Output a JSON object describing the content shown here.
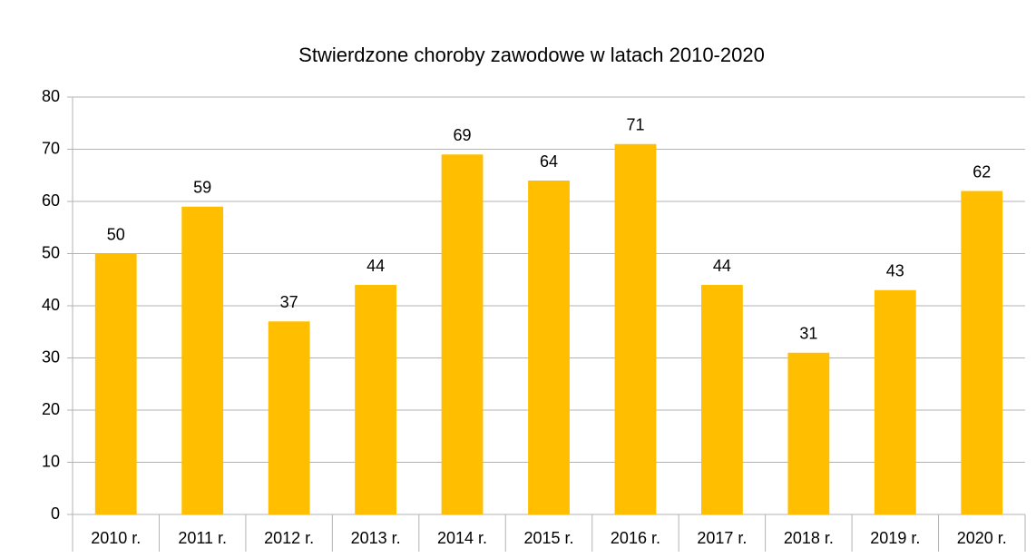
{
  "chart_data": {
    "type": "bar",
    "title": "Stwierdzone choroby zawodowe w latach 2010-2020",
    "categories": [
      "2010 r.",
      "2011 r.",
      "2012 r.",
      "2013 r.",
      "2014 r.",
      "2015 r.",
      "2016 r.",
      "2017 r.",
      "2018 r.",
      "2019 r.",
      "2020 r."
    ],
    "values": [
      50,
      59,
      37,
      44,
      69,
      64,
      71,
      44,
      31,
      43,
      62
    ],
    "color": "#ffbf00",
    "ylim": [
      0,
      80
    ],
    "yticks": [
      0,
      10,
      20,
      30,
      40,
      50,
      60,
      70,
      80
    ],
    "grid": true
  }
}
